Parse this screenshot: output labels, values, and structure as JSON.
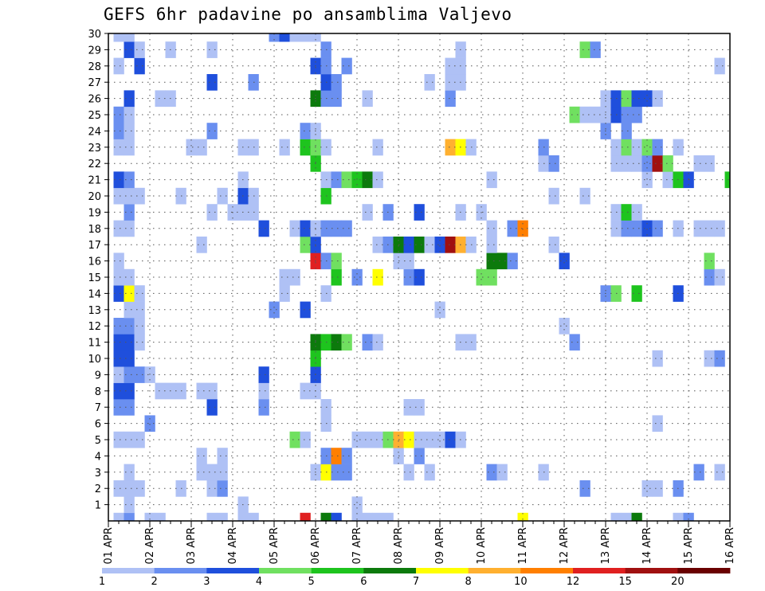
{
  "chart_data": {
    "type": "heatmap",
    "title": "GEFS 6hr padavine po ansamblima Valjevo",
    "x_tick_labels": [
      "01 APR",
      "02 APR",
      "03 APR",
      "04 APR",
      "05 APR",
      "06 APR",
      "07 APR",
      "08 APR",
      "09 APR",
      "10 APR",
      "11 APR",
      "12 APR",
      "13 APR",
      "14 APR",
      "15 APR",
      "16 APR"
    ],
    "y_tick_labels": [
      "1",
      "2",
      "3",
      "4",
      "5",
      "6",
      "7",
      "8",
      "9",
      "10",
      "11",
      "12",
      "13",
      "14",
      "15",
      "16",
      "17",
      "18",
      "19",
      "20",
      "21",
      "22",
      "23",
      "24",
      "25",
      "26",
      "27",
      "28",
      "29",
      "30"
    ],
    "x_unit": "6hr step since 01 APR 00Z",
    "x_range": [
      0,
      60
    ],
    "y_range": [
      0,
      30
    ],
    "grid": true,
    "legend": {
      "placement": "bottom",
      "levels": [
        "1",
        "2",
        "3",
        "4",
        "5",
        "6",
        "7",
        "8",
        "10",
        "12",
        "15",
        "20"
      ],
      "colors": [
        "#afc1f5",
        "#6a8ff0",
        "#1f4fdc",
        "#70e060",
        "#1ec41e",
        "#0c7a0c",
        "#ffff00",
        "#ffb030",
        "#ff7f00",
        "#e02020",
        "#a01010",
        "#6a0000"
      ]
    },
    "class_colors": [
      "#afc1f5",
      "#6a8ff0",
      "#1f4fdc",
      "#70e060",
      "#1ec41e",
      "#0c7a0c",
      "#ffff00",
      "#ffb030",
      "#ff7f00",
      "#e02020",
      "#a01010",
      "#6a0000"
    ],
    "cells": [
      [
        1,
        0,
        1
      ],
      [
        2,
        0,
        2
      ],
      [
        4,
        0,
        1
      ],
      [
        5,
        0,
        1
      ],
      [
        10,
        0,
        1
      ],
      [
        11,
        0,
        1
      ],
      [
        13,
        0,
        1
      ],
      [
        14,
        0,
        1
      ],
      [
        19,
        0,
        10
      ],
      [
        21,
        0,
        6
      ],
      [
        22,
        0,
        3
      ],
      [
        24,
        0,
        1
      ],
      [
        25,
        0,
        1
      ],
      [
        26,
        0,
        1
      ],
      [
        27,
        0,
        1
      ],
      [
        40,
        0,
        7
      ],
      [
        49,
        0,
        1
      ],
      [
        50,
        0,
        1
      ],
      [
        51,
        0,
        6
      ],
      [
        55,
        0,
        1
      ],
      [
        56,
        0,
        2
      ],
      [
        2,
        1,
        1
      ],
      [
        24,
        1,
        1
      ],
      [
        13,
        1,
        1
      ],
      [
        1,
        2,
        1
      ],
      [
        2,
        2,
        1
      ],
      [
        3,
        2,
        1
      ],
      [
        7,
        2,
        1
      ],
      [
        10,
        2,
        1
      ],
      [
        11,
        2,
        2
      ],
      [
        52,
        2,
        1
      ],
      [
        53,
        2,
        1
      ],
      [
        55,
        2,
        2
      ],
      [
        46,
        2,
        2
      ],
      [
        2,
        3,
        1
      ],
      [
        9,
        3,
        1
      ],
      [
        10,
        3,
        1
      ],
      [
        11,
        3,
        1
      ],
      [
        20,
        3,
        1
      ],
      [
        21,
        3,
        7
      ],
      [
        22,
        3,
        2
      ],
      [
        23,
        3,
        2
      ],
      [
        29,
        3,
        1
      ],
      [
        31,
        3,
        1
      ],
      [
        37,
        3,
        2
      ],
      [
        38,
        3,
        1
      ],
      [
        42,
        3,
        1
      ],
      [
        57,
        3,
        2
      ],
      [
        59,
        3,
        1
      ],
      [
        9,
        4,
        1
      ],
      [
        11,
        4,
        1
      ],
      [
        21,
        4,
        2
      ],
      [
        22,
        4,
        9
      ],
      [
        23,
        4,
        2
      ],
      [
        28,
        4,
        1
      ],
      [
        30,
        4,
        2
      ],
      [
        1,
        5,
        1
      ],
      [
        2,
        5,
        1
      ],
      [
        3,
        5,
        1
      ],
      [
        18,
        5,
        4
      ],
      [
        19,
        5,
        1
      ],
      [
        24,
        5,
        1
      ],
      [
        25,
        5,
        1
      ],
      [
        26,
        5,
        1
      ],
      [
        27,
        5,
        4
      ],
      [
        28,
        5,
        8
      ],
      [
        29,
        5,
        7
      ],
      [
        30,
        5,
        1
      ],
      [
        31,
        5,
        1
      ],
      [
        32,
        5,
        1
      ],
      [
        33,
        5,
        3
      ],
      [
        34,
        5,
        1
      ],
      [
        4,
        6,
        2
      ],
      [
        21,
        6,
        1
      ],
      [
        53,
        6,
        1
      ],
      [
        1,
        7,
        2
      ],
      [
        2,
        7,
        2
      ],
      [
        10,
        7,
        3
      ],
      [
        15,
        7,
        2
      ],
      [
        21,
        7,
        1
      ],
      [
        29,
        7,
        1
      ],
      [
        30,
        7,
        1
      ],
      [
        1,
        8,
        3
      ],
      [
        2,
        8,
        3
      ],
      [
        5,
        8,
        1
      ],
      [
        6,
        8,
        1
      ],
      [
        7,
        8,
        1
      ],
      [
        9,
        8,
        1
      ],
      [
        10,
        8,
        1
      ],
      [
        15,
        8,
        1
      ],
      [
        19,
        8,
        1
      ],
      [
        20,
        8,
        1
      ],
      [
        1,
        9,
        1
      ],
      [
        2,
        9,
        2
      ],
      [
        3,
        9,
        2
      ],
      [
        4,
        9,
        1
      ],
      [
        15,
        9,
        3
      ],
      [
        20,
        9,
        3
      ],
      [
        1,
        10,
        3
      ],
      [
        2,
        10,
        3
      ],
      [
        20,
        10,
        5
      ],
      [
        53,
        10,
        1
      ],
      [
        58,
        10,
        1
      ],
      [
        59,
        10,
        2
      ],
      [
        1,
        11,
        3
      ],
      [
        2,
        11,
        3
      ],
      [
        3,
        11,
        1
      ],
      [
        20,
        11,
        6
      ],
      [
        21,
        11,
        5
      ],
      [
        22,
        11,
        6
      ],
      [
        23,
        11,
        4
      ],
      [
        25,
        11,
        2
      ],
      [
        26,
        11,
        1
      ],
      [
        34,
        11,
        1
      ],
      [
        35,
        11,
        1
      ],
      [
        45,
        11,
        2
      ],
      [
        1,
        12,
        2
      ],
      [
        2,
        12,
        2
      ],
      [
        3,
        12,
        1
      ],
      [
        44,
        12,
        1
      ],
      [
        2,
        13,
        1
      ],
      [
        3,
        13,
        1
      ],
      [
        16,
        13,
        2
      ],
      [
        19,
        13,
        3
      ],
      [
        32,
        13,
        1
      ],
      [
        1,
        14,
        3
      ],
      [
        2,
        14,
        7
      ],
      [
        3,
        14,
        1
      ],
      [
        17,
        14,
        1
      ],
      [
        21,
        14,
        1
      ],
      [
        48,
        14,
        2
      ],
      [
        49,
        14,
        4
      ],
      [
        51,
        14,
        5
      ],
      [
        55,
        14,
        3
      ],
      [
        1,
        15,
        1
      ],
      [
        2,
        15,
        1
      ],
      [
        17,
        15,
        1
      ],
      [
        18,
        15,
        1
      ],
      [
        22,
        15,
        5
      ],
      [
        24,
        15,
        2
      ],
      [
        26,
        15,
        7
      ],
      [
        29,
        15,
        2
      ],
      [
        30,
        15,
        3
      ],
      [
        36,
        15,
        4
      ],
      [
        37,
        15,
        4
      ],
      [
        58,
        15,
        2
      ],
      [
        59,
        15,
        1
      ],
      [
        1,
        16,
        1
      ],
      [
        20,
        16,
        10
      ],
      [
        21,
        16,
        2
      ],
      [
        22,
        16,
        4
      ],
      [
        28,
        16,
        1
      ],
      [
        29,
        16,
        1
      ],
      [
        37,
        16,
        6
      ],
      [
        38,
        16,
        6
      ],
      [
        39,
        16,
        2
      ],
      [
        44,
        16,
        3
      ],
      [
        58,
        16,
        4
      ],
      [
        9,
        17,
        1
      ],
      [
        19,
        17,
        4
      ],
      [
        20,
        17,
        3
      ],
      [
        26,
        17,
        1
      ],
      [
        27,
        17,
        2
      ],
      [
        28,
        17,
        6
      ],
      [
        29,
        17,
        3
      ],
      [
        30,
        17,
        6
      ],
      [
        31,
        17,
        1
      ],
      [
        32,
        17,
        3
      ],
      [
        33,
        17,
        11
      ],
      [
        34,
        17,
        8
      ],
      [
        35,
        17,
        1
      ],
      [
        37,
        17,
        1
      ],
      [
        43,
        17,
        1
      ],
      [
        1,
        18,
        1
      ],
      [
        2,
        18,
        1
      ],
      [
        15,
        18,
        3
      ],
      [
        18,
        18,
        1
      ],
      [
        19,
        18,
        3
      ],
      [
        20,
        18,
        1
      ],
      [
        21,
        18,
        2
      ],
      [
        22,
        18,
        2
      ],
      [
        23,
        18,
        2
      ],
      [
        37,
        18,
        1
      ],
      [
        39,
        18,
        2
      ],
      [
        40,
        18,
        9
      ],
      [
        49,
        18,
        1
      ],
      [
        50,
        18,
        2
      ],
      [
        51,
        18,
        2
      ],
      [
        52,
        18,
        3
      ],
      [
        53,
        18,
        2
      ],
      [
        55,
        18,
        1
      ],
      [
        57,
        18,
        1
      ],
      [
        58,
        18,
        1
      ],
      [
        59,
        18,
        1
      ],
      [
        2,
        19,
        2
      ],
      [
        10,
        19,
        1
      ],
      [
        12,
        19,
        1
      ],
      [
        13,
        19,
        1
      ],
      [
        14,
        19,
        1
      ],
      [
        25,
        19,
        1
      ],
      [
        27,
        19,
        2
      ],
      [
        30,
        19,
        3
      ],
      [
        34,
        19,
        1
      ],
      [
        36,
        19,
        1
      ],
      [
        49,
        19,
        1
      ],
      [
        50,
        19,
        5
      ],
      [
        51,
        19,
        1
      ],
      [
        1,
        20,
        1
      ],
      [
        2,
        20,
        1
      ],
      [
        3,
        20,
        1
      ],
      [
        7,
        20,
        1
      ],
      [
        11,
        20,
        1
      ],
      [
        13,
        20,
        3
      ],
      [
        14,
        20,
        1
      ],
      [
        21,
        20,
        5
      ],
      [
        43,
        20,
        1
      ],
      [
        46,
        20,
        1
      ],
      [
        1,
        21,
        3
      ],
      [
        2,
        21,
        2
      ],
      [
        13,
        21,
        1
      ],
      [
        21,
        21,
        1
      ],
      [
        22,
        21,
        2
      ],
      [
        23,
        21,
        4
      ],
      [
        24,
        21,
        5
      ],
      [
        25,
        21,
        6
      ],
      [
        26,
        21,
        1
      ],
      [
        37,
        21,
        1
      ],
      [
        52,
        21,
        1
      ],
      [
        54,
        21,
        1
      ],
      [
        55,
        21,
        5
      ],
      [
        56,
        21,
        3
      ],
      [
        60,
        21,
        5
      ],
      [
        20,
        22,
        5
      ],
      [
        42,
        22,
        1
      ],
      [
        43,
        22,
        2
      ],
      [
        49,
        22,
        1
      ],
      [
        50,
        22,
        1
      ],
      [
        51,
        22,
        1
      ],
      [
        52,
        22,
        2
      ],
      [
        53,
        22,
        11
      ],
      [
        54,
        22,
        4
      ],
      [
        57,
        22,
        1
      ],
      [
        58,
        22,
        1
      ],
      [
        1,
        23,
        1
      ],
      [
        2,
        23,
        1
      ],
      [
        8,
        23,
        1
      ],
      [
        9,
        23,
        1
      ],
      [
        13,
        23,
        1
      ],
      [
        14,
        23,
        1
      ],
      [
        17,
        23,
        1
      ],
      [
        19,
        23,
        5
      ],
      [
        20,
        23,
        4
      ],
      [
        21,
        23,
        1
      ],
      [
        26,
        23,
        1
      ],
      [
        33,
        23,
        8
      ],
      [
        34,
        23,
        7
      ],
      [
        35,
        23,
        1
      ],
      [
        42,
        23,
        2
      ],
      [
        49,
        23,
        1
      ],
      [
        50,
        23,
        4
      ],
      [
        51,
        23,
        1
      ],
      [
        52,
        23,
        4
      ],
      [
        53,
        23,
        2
      ],
      [
        55,
        23,
        1
      ],
      [
        1,
        24,
        2
      ],
      [
        2,
        24,
        1
      ],
      [
        10,
        24,
        2
      ],
      [
        19,
        24,
        2
      ],
      [
        20,
        24,
        1
      ],
      [
        48,
        24,
        2
      ],
      [
        50,
        24,
        2
      ],
      [
        1,
        25,
        2
      ],
      [
        2,
        25,
        1
      ],
      [
        45,
        25,
        4
      ],
      [
        46,
        25,
        1
      ],
      [
        47,
        25,
        1
      ],
      [
        48,
        25,
        1
      ],
      [
        49,
        25,
        3
      ],
      [
        50,
        25,
        2
      ],
      [
        51,
        25,
        2
      ],
      [
        2,
        26,
        3
      ],
      [
        5,
        26,
        1
      ],
      [
        6,
        26,
        1
      ],
      [
        20,
        26,
        6
      ],
      [
        21,
        26,
        2
      ],
      [
        22,
        26,
        2
      ],
      [
        25,
        26,
        1
      ],
      [
        33,
        26,
        2
      ],
      [
        48,
        26,
        1
      ],
      [
        49,
        26,
        3
      ],
      [
        50,
        26,
        4
      ],
      [
        51,
        26,
        3
      ],
      [
        52,
        26,
        3
      ],
      [
        53,
        26,
        1
      ],
      [
        10,
        27,
        3
      ],
      [
        14,
        27,
        2
      ],
      [
        21,
        27,
        3
      ],
      [
        22,
        27,
        2
      ],
      [
        31,
        27,
        1
      ],
      [
        33,
        27,
        1
      ],
      [
        34,
        27,
        1
      ],
      [
        1,
        28,
        1
      ],
      [
        3,
        28,
        3
      ],
      [
        20,
        28,
        3
      ],
      [
        21,
        28,
        2
      ],
      [
        23,
        28,
        2
      ],
      [
        33,
        28,
        1
      ],
      [
        34,
        28,
        1
      ],
      [
        59,
        28,
        1
      ],
      [
        2,
        29,
        3
      ],
      [
        3,
        29,
        1
      ],
      [
        6,
        29,
        1
      ],
      [
        10,
        29,
        1
      ],
      [
        21,
        29,
        2
      ],
      [
        34,
        29,
        1
      ],
      [
        46,
        29,
        4
      ],
      [
        47,
        29,
        2
      ],
      [
        1,
        30,
        1
      ],
      [
        2,
        30,
        1
      ],
      [
        16,
        30,
        2
      ],
      [
        17,
        30,
        3
      ],
      [
        18,
        30,
        1
      ],
      [
        19,
        30,
        1
      ],
      [
        20,
        30,
        1
      ]
    ]
  }
}
